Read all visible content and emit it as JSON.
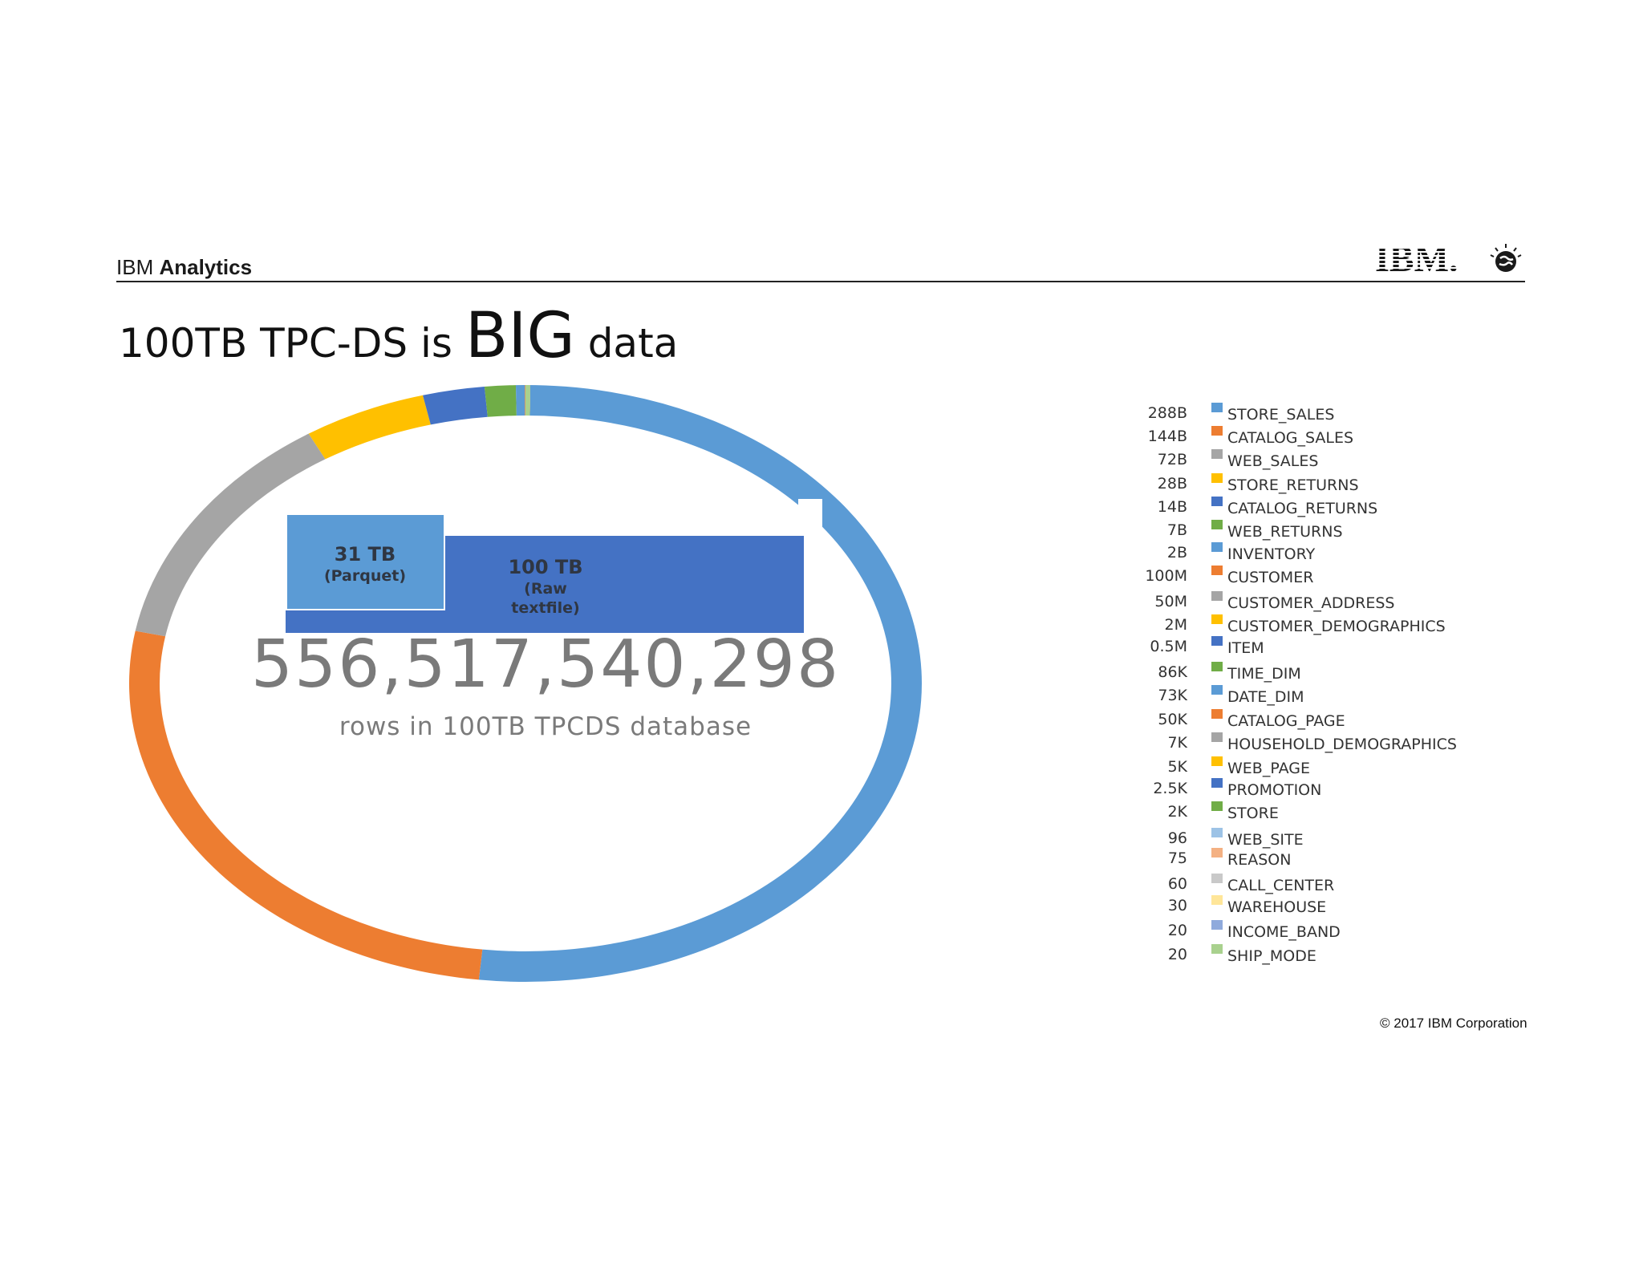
{
  "header": {
    "brand_prefix": "IBM",
    "brand_product": "Analytics",
    "logo_text": "IBM."
  },
  "title": {
    "prefix": "100TB TPC-DS is",
    "emphasis": "BIG",
    "suffix": "data"
  },
  "size_boxes": {
    "parquet_size": "31 TB",
    "parquet_label": "(Parquet)",
    "raw_size": "100 TB",
    "raw_label_line1": "(Raw",
    "raw_label_line2": "textfile)"
  },
  "headline": {
    "value": "556,517,540,298",
    "caption": "rows in 100TB TPCDS database"
  },
  "footer": {
    "copyright": "© 2017 IBM Corporation"
  },
  "chart_data": {
    "type": "pie",
    "style": "donut",
    "legend_position": "right",
    "series": [
      {
        "name": "STORE_SALES",
        "label": "288B",
        "value": 288000000000,
        "color": "#5b9bd5"
      },
      {
        "name": "CATALOG_SALES",
        "label": "144B",
        "value": 144000000000,
        "color": "#ed7d31"
      },
      {
        "name": "WEB_SALES",
        "label": "72B",
        "value": 72000000000,
        "color": "#a5a5a5"
      },
      {
        "name": "STORE_RETURNS",
        "label": "28B",
        "value": 28000000000,
        "color": "#ffc000"
      },
      {
        "name": "CATALOG_RETURNS",
        "label": "14B",
        "value": 14000000000,
        "color": "#4472c4"
      },
      {
        "name": "WEB_RETURNS",
        "label": "7B",
        "value": 7000000000,
        "color": "#70ad47"
      },
      {
        "name": "INVENTORY",
        "label": "2B",
        "value": 2000000000,
        "color": "#5b9bd5"
      },
      {
        "name": "CUSTOMER",
        "label": "100M",
        "value": 100000000,
        "color": "#ed7d31"
      },
      {
        "name": "CUSTOMER_ADDRESS",
        "label": "50M",
        "value": 50000000,
        "color": "#a5a5a5"
      },
      {
        "name": "CUSTOMER_DEMOGRAPHICS",
        "label": "2M",
        "value": 2000000,
        "color": "#ffc000"
      },
      {
        "name": "ITEM",
        "label": "0.5M",
        "value": 500000,
        "color": "#4472c4"
      },
      {
        "name": "TIME_DIM",
        "label": "86K",
        "value": 86000,
        "color": "#70ad47"
      },
      {
        "name": "DATE_DIM",
        "label": "73K",
        "value": 73000,
        "color": "#5b9bd5"
      },
      {
        "name": "CATALOG_PAGE",
        "label": "50K",
        "value": 50000,
        "color": "#ed7d31"
      },
      {
        "name": "HOUSEHOLD_DEMOGRAPHICS",
        "label": "7K",
        "value": 7000,
        "color": "#a5a5a5"
      },
      {
        "name": "WEB_PAGE",
        "label": "5K",
        "value": 5000,
        "color": "#ffc000"
      },
      {
        "name": "PROMOTION",
        "label": "2.5K",
        "value": 2500,
        "color": "#4472c4"
      },
      {
        "name": "STORE",
        "label": "2K",
        "value": 2000,
        "color": "#70ad47"
      },
      {
        "name": "WEB_SITE",
        "label": "96",
        "value": 96,
        "color": "#9dc3e6"
      },
      {
        "name": "REASON",
        "label": "75",
        "value": 75,
        "color": "#f4b183"
      },
      {
        "name": "CALL_CENTER",
        "label": "60",
        "value": 60,
        "color": "#c9c9c9"
      },
      {
        "name": "WAREHOUSE",
        "label": "30",
        "value": 30,
        "color": "#ffe699"
      },
      {
        "name": "INCOME_BAND",
        "label": "20",
        "value": 20,
        "color": "#8faadc"
      },
      {
        "name": "SHIP_MODE",
        "label": "20",
        "value": 20,
        "color": "#a9d18e"
      }
    ]
  }
}
